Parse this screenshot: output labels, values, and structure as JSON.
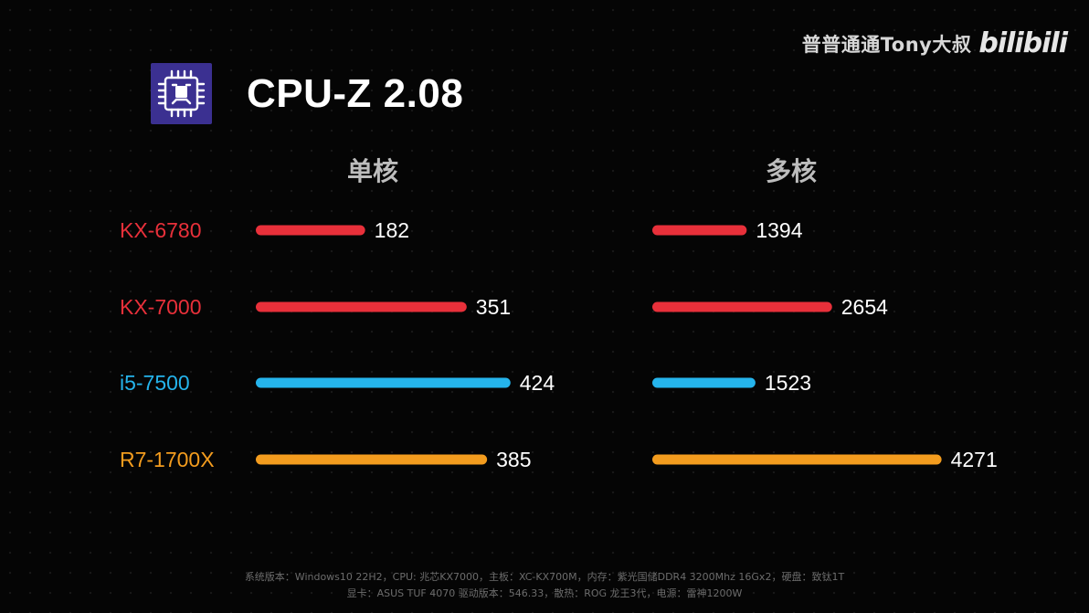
{
  "watermark": {
    "text": "普普通通Tony大叔",
    "logo": "bilibili"
  },
  "header": {
    "title": "CPU-Z 2.08",
    "icon": "cpu-chip-icon"
  },
  "colors": {
    "red": "#e8303a",
    "blue": "#25b4ec",
    "orange": "#f39c1e",
    "background": "#050505"
  },
  "chart_data": {
    "type": "bar",
    "orientation": "horizontal",
    "title": "CPU-Z 2.08",
    "categories": [
      "KX-6780",
      "KX-7000",
      "i5-7500",
      "R7-1700X"
    ],
    "category_colors": [
      "#e8303a",
      "#e8303a",
      "#25b4ec",
      "#f39c1e"
    ],
    "panels": [
      {
        "name": "单核",
        "values": [
          182,
          351,
          424,
          385
        ]
      },
      {
        "name": "多核",
        "values": [
          1394,
          2654,
          1523,
          4271
        ]
      }
    ],
    "grid": false,
    "legend": "none"
  },
  "footer": {
    "line1": "系统版本：Windows10 22H2，CPU: 兆芯KX7000，主板：XC-KX700M，内存：紫光国储DDR4 3200Mhz 16Gx2，硬盘：致钛1T",
    "line2": "显卡：ASUS TUF 4070 驱动版本：546.33，散热：ROG 龙王3代，电源：雷神1200W"
  }
}
